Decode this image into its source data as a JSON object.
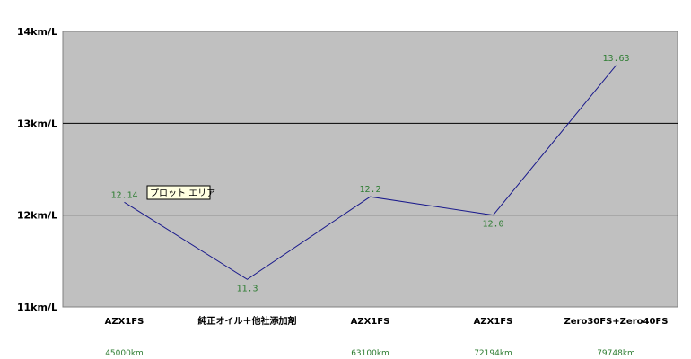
{
  "chart_data": {
    "type": "line",
    "categories": [
      "AZX1FS",
      "純正オイル＋他社添加剤",
      "AZX1FS",
      "AZX1FS",
      "Zero30FS+Zero40FS"
    ],
    "sub_labels": [
      "45000km",
      "",
      "63100km",
      "72194km",
      "79748km"
    ],
    "values": [
      12.14,
      11.3,
      12.2,
      12.0,
      13.63
    ],
    "data_labels": [
      "12.14",
      "11.3",
      "12.2",
      "12.0",
      "13.63"
    ],
    "y_ticks": [
      {
        "value": 11,
        "label": "11km/L"
      },
      {
        "value": 12,
        "label": "12km/L"
      },
      {
        "value": 13,
        "label": "13km/L"
      },
      {
        "value": 14,
        "label": "14km/L"
      }
    ],
    "ylim": [
      11,
      14
    ],
    "grid": true,
    "title": "",
    "xlabel": "",
    "ylabel": "",
    "tooltip": "プロット エリア",
    "colors": {
      "plot_bg": "#c0c0c0",
      "line": "#1a1a8c",
      "label": "#2e7d32",
      "grid": "#000000",
      "tooltip_bg": "#ffffe1"
    }
  }
}
